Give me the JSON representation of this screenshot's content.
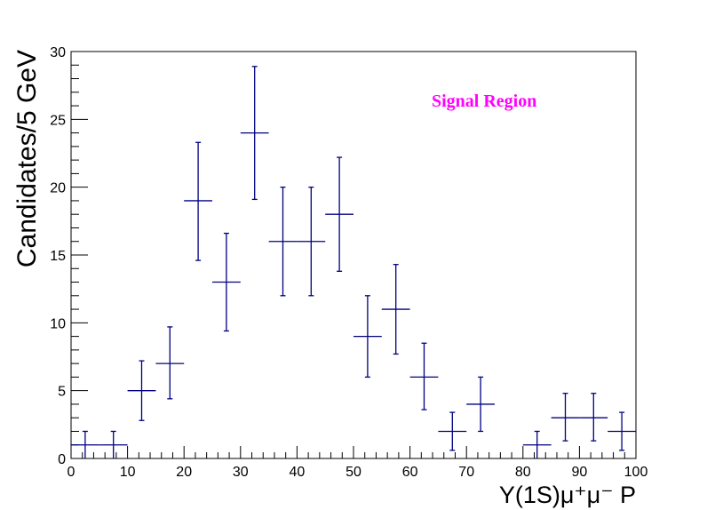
{
  "chart_data": {
    "type": "scatter",
    "title": "",
    "xlabel": "Υ(1S)μ⁺μ⁻ P",
    "ylabel": "Candidates/5 GeV",
    "xlim": [
      0,
      100
    ],
    "ylim": [
      0,
      30
    ],
    "xticks": [
      "0",
      "10",
      "20",
      "30",
      "40",
      "50",
      "60",
      "70",
      "80",
      "90",
      "100"
    ],
    "yticks": [
      "0",
      "5",
      "10",
      "15",
      "20",
      "25",
      "30"
    ],
    "grid": false,
    "annotation": {
      "text": "Signal Region",
      "color": "#ff00ff"
    },
    "marker_color": "#000080",
    "bin_half_width": 2.5,
    "points": [
      {
        "x": 2.5,
        "y": 1,
        "err_low": 1,
        "err_high": 1
      },
      {
        "x": 7.5,
        "y": 1,
        "err_low": 1,
        "err_high": 1
      },
      {
        "x": 12.5,
        "y": 5,
        "err_low": 2.2,
        "err_high": 2.2
      },
      {
        "x": 17.5,
        "y": 7,
        "err_low": 2.6,
        "err_high": 2.7
      },
      {
        "x": 22.5,
        "y": 19,
        "err_low": 4.4,
        "err_high": 4.3
      },
      {
        "x": 27.5,
        "y": 13,
        "err_low": 3.6,
        "err_high": 3.6
      },
      {
        "x": 32.5,
        "y": 24,
        "err_low": 4.9,
        "err_high": 4.9
      },
      {
        "x": 37.5,
        "y": 16,
        "err_low": 4,
        "err_high": 4
      },
      {
        "x": 42.5,
        "y": 16,
        "err_low": 4,
        "err_high": 4
      },
      {
        "x": 47.5,
        "y": 18,
        "err_low": 4.2,
        "err_high": 4.2
      },
      {
        "x": 52.5,
        "y": 9,
        "err_low": 3,
        "err_high": 3
      },
      {
        "x": 57.5,
        "y": 11,
        "err_low": 3.3,
        "err_high": 3.3
      },
      {
        "x": 62.5,
        "y": 6,
        "err_low": 2.4,
        "err_high": 2.5
      },
      {
        "x": 67.5,
        "y": 2,
        "err_low": 1.4,
        "err_high": 1.4
      },
      {
        "x": 72.5,
        "y": 4,
        "err_low": 2,
        "err_high": 2
      },
      {
        "x": 82.5,
        "y": 1,
        "err_low": 1,
        "err_high": 1
      },
      {
        "x": 87.5,
        "y": 3,
        "err_low": 1.7,
        "err_high": 1.8
      },
      {
        "x": 92.5,
        "y": 3,
        "err_low": 1.7,
        "err_high": 1.8
      },
      {
        "x": 97.5,
        "y": 2,
        "err_low": 1.4,
        "err_high": 1.4
      }
    ]
  }
}
